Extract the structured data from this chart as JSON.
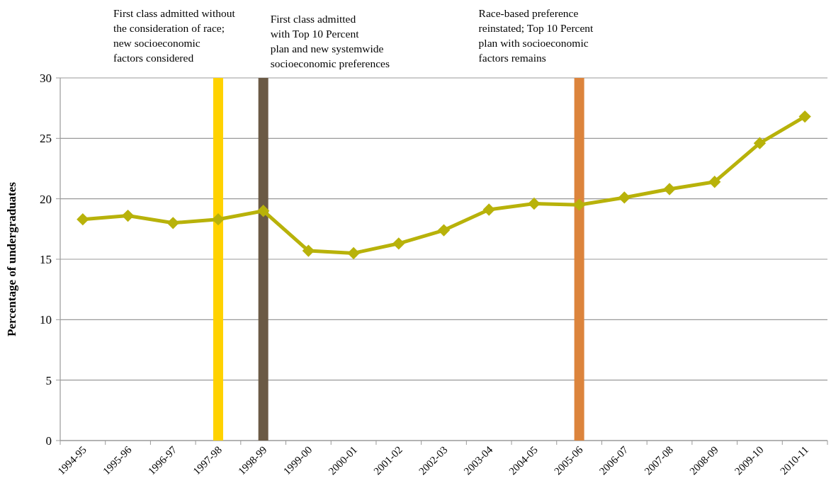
{
  "chart_data": {
    "type": "line",
    "ylabel": "Percentage of undergraduates",
    "categories": [
      "1994-95",
      "1995-96",
      "1996-97",
      "1997-98",
      "1998-99",
      "1999-00",
      "2000-01",
      "2001-02",
      "2002-03",
      "2003-04",
      "2004-05",
      "2005-06",
      "2006-07",
      "2007-08",
      "2008-09",
      "2009-10",
      "2010-11"
    ],
    "series": [
      {
        "color": "#b8b20a",
        "values": [
          18.3,
          18.6,
          18.0,
          18.3,
          19.0,
          15.7,
          15.5,
          16.3,
          17.4,
          19.1,
          19.6,
          19.5,
          20.1,
          20.8,
          21.4,
          24.6,
          26.8
        ]
      }
    ],
    "ylim": [
      0,
      30
    ],
    "yticks": [
      0,
      5,
      10,
      15,
      20,
      25,
      30
    ],
    "grid": "y",
    "marker": "diamond",
    "line_style": "solid",
    "ref_lines": [
      {
        "axis": "x",
        "value": "1997-98",
        "color": "#ffd200",
        "label": "First class admitted without\nthe consideration of race;\nnew socioeconomic\nfactors considered"
      },
      {
        "axis": "x",
        "value": "1998-99",
        "color": "#6b5a45",
        "label": "First class admitted\nwith Top 10 Percent\nplan and new systemwide\nsocioeconomic preferences"
      },
      {
        "axis": "x",
        "value": "2005-06",
        "color": "#dc843c",
        "label": "Race-based preference\nreinstated; Top 10 Percent\nplan with socioeconomic\nfactors remains"
      }
    ]
  }
}
